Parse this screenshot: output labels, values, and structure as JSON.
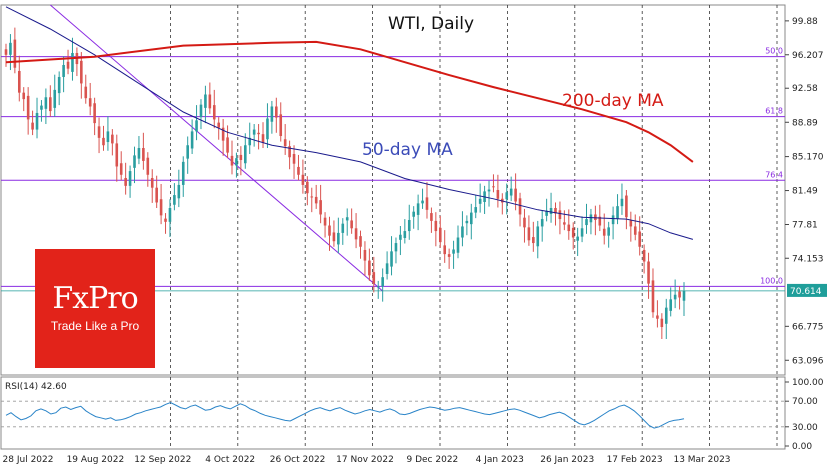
{
  "chart_data": [
    {
      "type": "candlestick",
      "title": "WTI, Daily",
      "x_tick_labels": [
        "28 Jul 2022",
        "19 Aug 2022",
        "12 Sep 2022",
        "4 Oct 2022",
        "26 Oct 2022",
        "17 Nov 2022",
        "9 Dec 2022",
        "4 Jan 2023",
        "26 Jan 2023",
        "17 Feb 2023",
        "13 Mar 2023"
      ],
      "y_tick_labels": [
        "99.88",
        "96.207",
        "92.58",
        "88.89",
        "85.170",
        "81.49",
        "77.81",
        "74.153",
        "70.614",
        "66.775",
        "63.096"
      ],
      "ylim": [
        61.5,
        101.6
      ],
      "last_price": 70.614,
      "closes": [
        96.2,
        97.5,
        94.8,
        92.1,
        91.4,
        89.2,
        88.1,
        89.9,
        90.7,
        91.6,
        90.1,
        92.4,
        93.8,
        95.1,
        94.7,
        96.4,
        95.2,
        93.1,
        91.5,
        90.6,
        88.8,
        87.2,
        86.4,
        87.9,
        86.6,
        84.1,
        83.2,
        82.0,
        83.6,
        85.3,
        86.1,
        84.7,
        83.2,
        81.8,
        80.2,
        78.8,
        78.1,
        79.6,
        81.0,
        82.1,
        84.6,
        86.4,
        87.9,
        89.1,
        90.8,
        91.9,
        90.4,
        89.2,
        88.3,
        86.9,
        85.6,
        84.2,
        85.0,
        84.8,
        86.4,
        87.2,
        88.1,
        87.6,
        86.7,
        89.3,
        90.6,
        89.4,
        87.4,
        86.3,
        85.1,
        84.4,
        83.2,
        82.1,
        81.2,
        80.8,
        80.1,
        78.9,
        77.7,
        76.6,
        76.0,
        76.9,
        77.9,
        78.6,
        77.4,
        76.2,
        75.4,
        73.9,
        72.3,
        71.4,
        71.1,
        72.1,
        73.6,
        74.9,
        75.8,
        76.7,
        77.1,
        78.3,
        79.2,
        80.1,
        80.4,
        79.4,
        78.2,
        77.1,
        75.9,
        74.6,
        74.3,
        75.1,
        76.4,
        77.6,
        78.2,
        79.1,
        79.7,
        80.6,
        81.4,
        81.6,
        81.9,
        80.6,
        80.2,
        81.3,
        81.7,
        80.3,
        78.9,
        77.5,
        76.1,
        75.8,
        77.6,
        78.4,
        79.3,
        79.6,
        79.0,
        78.4,
        77.8,
        77.1,
        76.4,
        76.5,
        77.4,
        78.4,
        78.9,
        78.3,
        77.7,
        76.6,
        77.5,
        78.8,
        79.8,
        80.6,
        78.6,
        77.6,
        76.7,
        75.4,
        73.8,
        71.4,
        68.3,
        67.6,
        66.7,
        68.8,
        69.7,
        70.2,
        69.9,
        70.614
      ],
      "series": [
        {
          "name": "50-day MA",
          "color": "#1a1a8c",
          "anchors": [
            [
              0,
              101.4
            ],
            [
              10,
              99.0
            ],
            [
              20,
              96.2
            ],
            [
              30,
              93.1
            ],
            [
              40,
              90.0
            ],
            [
              50,
              87.8
            ],
            [
              60,
              86.4
            ],
            [
              70,
              85.6
            ],
            [
              80,
              84.6
            ],
            [
              90,
              82.8
            ],
            [
              100,
              81.6
            ],
            [
              110,
              80.6
            ],
            [
              120,
              79.4
            ],
            [
              130,
              78.6
            ],
            [
              140,
              78.4
            ],
            [
              145,
              77.9
            ],
            [
              150,
              76.9
            ],
            [
              155,
              76.2
            ]
          ]
        },
        {
          "name": "200-day MA",
          "color": "#d41a14",
          "anchors": [
            [
              0,
              95.4
            ],
            [
              20,
              96.0
            ],
            [
              40,
              97.2
            ],
            [
              60,
              97.5
            ],
            [
              70,
              97.6
            ],
            [
              80,
              96.8
            ],
            [
              90,
              95.4
            ],
            [
              100,
              94.0
            ],
            [
              110,
              92.7
            ],
            [
              120,
              91.5
            ],
            [
              130,
              90.3
            ],
            [
              140,
              88.9
            ],
            [
              145,
              87.8
            ],
            [
              150,
              86.4
            ],
            [
              155,
              84.6
            ]
          ]
        }
      ],
      "annotations": {
        "ma50_label": "50-day MA",
        "ma200_label": "200-day MA"
      },
      "fibonacci_levels": [
        {
          "label": "50.0",
          "price": 96.0
        },
        {
          "label": "61.8",
          "price": 89.5
        },
        {
          "label": "76.4",
          "price": 82.6
        },
        {
          "label": "100.0",
          "price": 71.1
        }
      ],
      "trendline": {
        "from": [
          10,
          101.6
        ],
        "to": [
          85,
          70.6
        ]
      },
      "colors": {
        "up": "#2a9ea0",
        "down": "#d9534f",
        "fib": "#8a2be2",
        "price_tag": "#1f9e9a"
      }
    },
    {
      "type": "line",
      "label": "RSI(14) 42.60",
      "ylim": [
        0,
        100
      ],
      "y_tick_labels": [
        "100.00",
        "70.00",
        "30.00",
        "0.00"
      ],
      "reference_levels": [
        70,
        30
      ],
      "color": "#2a84c8",
      "values": [
        48,
        52,
        46,
        41,
        43,
        47,
        55,
        58,
        55,
        50,
        52,
        59,
        61,
        57,
        60,
        62,
        55,
        50,
        46,
        44,
        42,
        44,
        40,
        41,
        43,
        46,
        50,
        52,
        55,
        57,
        59,
        61,
        65,
        68,
        64,
        60,
        58,
        62,
        64,
        60,
        56,
        57,
        61,
        63,
        60,
        58,
        62,
        66,
        63,
        58,
        55,
        51,
        48,
        46,
        44,
        42,
        40,
        39,
        43,
        47,
        51,
        55,
        58,
        60,
        57,
        55,
        58,
        60,
        56,
        53,
        50,
        52,
        55,
        57,
        55,
        53,
        56,
        58,
        55,
        50,
        49,
        51,
        54,
        57,
        59,
        61,
        60,
        58,
        56,
        57,
        59,
        60,
        58,
        56,
        54,
        52,
        50,
        49,
        51,
        53,
        55,
        57,
        58,
        56,
        53,
        50,
        47,
        44,
        46,
        49,
        51,
        53,
        50,
        45,
        40,
        35,
        33,
        36,
        40,
        45,
        50,
        55,
        58,
        62,
        64,
        60,
        55,
        48,
        40,
        32,
        28,
        30,
        34,
        38,
        40,
        41,
        42.6
      ]
    }
  ]
}
